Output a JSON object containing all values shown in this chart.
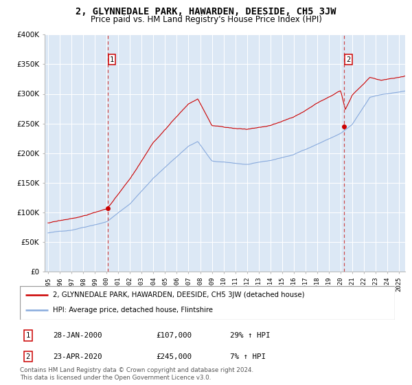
{
  "title": "2, GLYNNEDALE PARK, HAWARDEN, DEESIDE, CH5 3JW",
  "subtitle": "Price paid vs. HM Land Registry's House Price Index (HPI)",
  "legend_line1": "2, GLYNNEDALE PARK, HAWARDEN, DEESIDE, CH5 3JW (detached house)",
  "legend_line2": "HPI: Average price, detached house, Flintshire",
  "ann1_label": "1",
  "ann1_date": "28-JAN-2000",
  "ann1_price": "£107,000",
  "ann1_hpi": "29% ↑ HPI",
  "ann2_label": "2",
  "ann2_date": "23-APR-2020",
  "ann2_price": "£245,000",
  "ann2_hpi": "7% ↑ HPI",
  "footnote_line1": "Contains HM Land Registry data © Crown copyright and database right 2024.",
  "footnote_line2": "This data is licensed under the Open Government Licence v3.0.",
  "ylim": [
    0,
    400000
  ],
  "yticks": [
    0,
    50000,
    100000,
    150000,
    200000,
    250000,
    300000,
    350000,
    400000
  ],
  "ytick_labels": [
    "£0",
    "£50K",
    "£100K",
    "£150K",
    "£200K",
    "£250K",
    "£300K",
    "£350K",
    "£400K"
  ],
  "x_start_year": 1995,
  "x_end_year": 2025,
  "sale1_year": 2000.08,
  "sale1_price": 107000,
  "sale2_year": 2020.31,
  "sale2_price": 245000,
  "red_color": "#cc0000",
  "blue_color": "#88aadd",
  "bg_color": "#dce8f5",
  "grid_color": "#ffffff",
  "dash_color": "#cc4444"
}
